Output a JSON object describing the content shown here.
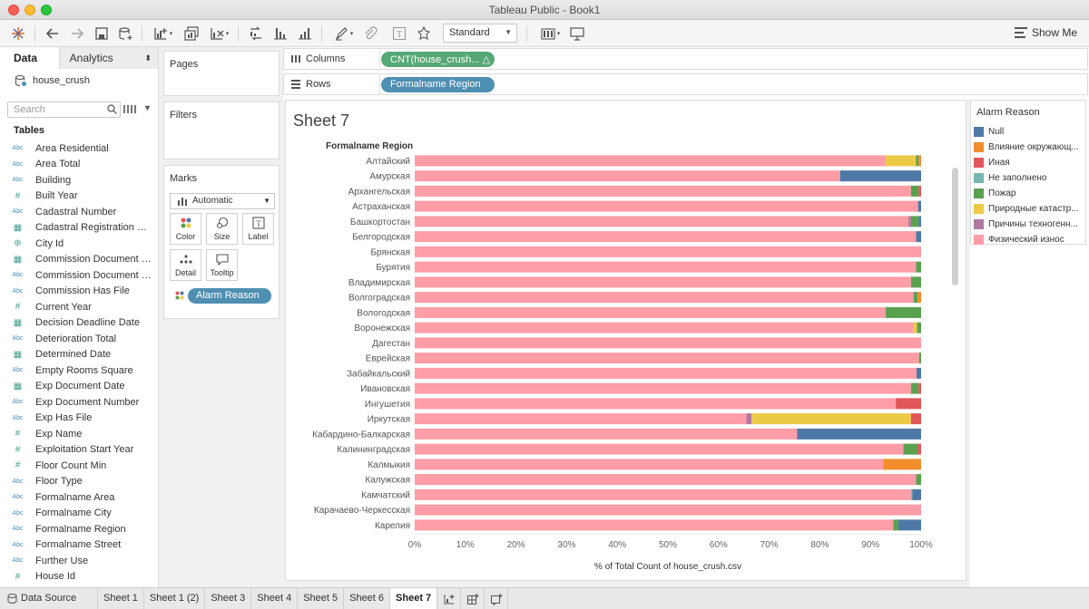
{
  "window": {
    "title": "Tableau Public - Book1"
  },
  "toolbar": {
    "fit_value": "Standard",
    "show_me_label": "Show Me",
    "icons": [
      "tableau-logo-icon",
      "undo-icon",
      "redo-icon",
      "save-icon",
      "new-datasource-icon",
      "new-worksheet-icon",
      "duplicate-icon",
      "clear-icon",
      "swap-icon",
      "sort-ascending-icon",
      "sort-descending-icon",
      "highlight-icon",
      "group-icon",
      "label-icon",
      "fix-axes-icon",
      "show-cards-icon",
      "presentation-icon"
    ]
  },
  "data_pane": {
    "tab_data": "Data",
    "tab_analytics": "Analytics",
    "datasource": "house_crush",
    "search_placeholder": "Search",
    "tables_heading": "Tables",
    "fields": [
      {
        "name": "Area Residential",
        "type": "Abc"
      },
      {
        "name": "Area Total",
        "type": "Abc"
      },
      {
        "name": "Building",
        "type": "Abc"
      },
      {
        "name": "Built Year",
        "type": "#"
      },
      {
        "name": "Cadastral Number",
        "type": "Abc"
      },
      {
        "name": "Cadastral Registration Date",
        "type": "date"
      },
      {
        "name": "City Id",
        "type": "geo"
      },
      {
        "name": "Commission Document D...",
        "type": "date"
      },
      {
        "name": "Commission Document N...",
        "type": "Abc"
      },
      {
        "name": "Commission Has File",
        "type": "Abc"
      },
      {
        "name": "Current Year",
        "type": "#"
      },
      {
        "name": "Decision Deadline Date",
        "type": "date"
      },
      {
        "name": "Deterioration Total",
        "type": "Abc"
      },
      {
        "name": "Determined Date",
        "type": "date"
      },
      {
        "name": "Empty Rooms Square",
        "type": "Abc"
      },
      {
        "name": "Exp Document Date",
        "type": "date"
      },
      {
        "name": "Exp Document Number",
        "type": "Abc"
      },
      {
        "name": "Exp Has File",
        "type": "Abc"
      },
      {
        "name": "Exp Name",
        "type": "#"
      },
      {
        "name": "Exploitation Start Year",
        "type": "#"
      },
      {
        "name": "Floor Count Min",
        "type": "#"
      },
      {
        "name": "Floor Type",
        "type": "Abc"
      },
      {
        "name": "Formalname Area",
        "type": "Abc"
      },
      {
        "name": "Formalname City",
        "type": "Abc"
      },
      {
        "name": "Formalname Region",
        "type": "Abc"
      },
      {
        "name": "Formalname Street",
        "type": "Abc"
      },
      {
        "name": "Further Use",
        "type": "Abc"
      },
      {
        "name": "House Id",
        "type": "#"
      }
    ]
  },
  "cards": {
    "pages": "Pages",
    "filters": "Filters",
    "marks": "Marks",
    "marks_type": "Automatic",
    "buttons": {
      "color": "Color",
      "size": "Size",
      "label": "Label",
      "detail": "Detail",
      "tooltip": "Tooltip"
    },
    "color_pill": "Alarm Reason"
  },
  "shelves": {
    "columns_label": "Columns",
    "columns_pill": "CNT(house_crush... △",
    "rows_label": "Rows",
    "rows_pill": "Formalname Region"
  },
  "sheet": {
    "title": "Sheet 7"
  },
  "chart_data": {
    "type": "bar",
    "orientation": "horizontal-stacked-100",
    "row_header": "Formalname Region",
    "xlabel": "% of Total Count of house_crush.csv",
    "xlim": [
      0,
      100
    ],
    "x_ticks": [
      "0%",
      "10%",
      "20%",
      "30%",
      "40%",
      "50%",
      "60%",
      "70%",
      "80%",
      "90%",
      "100%"
    ],
    "series_order": [
      "Физический износ",
      "Причины техногенн...",
      "Природные катастр...",
      "Пожар",
      "Не заполнено",
      "Иная",
      "Влияние окружающ...",
      "Null"
    ],
    "colors": {
      "Null": "#4e79a7",
      "Влияние окружающ...": "#f28e2b",
      "Иная": "#e15759",
      "Не заполнено": "#76b7b2",
      "Пожар": "#59a14f",
      "Природные катастр...": "#edc948",
      "Причины техногенн...": "#b07aa1",
      "Физический износ": "#ff9da7"
    },
    "rows": [
      {
        "category": "Алтайский",
        "values": {
          "Физический износ": 93,
          "Природные катастр...": 6,
          "Пожар": 0.5,
          "Влияние окружающ...": 0.5
        }
      },
      {
        "category": "Амурская",
        "values": {
          "Физический износ": 84,
          "Null": 16
        }
      },
      {
        "category": "Архангельская",
        "values": {
          "Физический износ": 98,
          "Пожар": 1.5,
          "Иная": 0.5
        }
      },
      {
        "category": "Астраханская",
        "values": {
          "Физический износ": 99.4,
          "Null": 0.6
        }
      },
      {
        "category": "Башкортостан",
        "values": {
          "Физический износ": 97.5,
          "Пожар": 1.5,
          "Причины техногенн...": 0.5,
          "Null": 0.5
        }
      },
      {
        "category": "Белгородская",
        "values": {
          "Физический износ": 99,
          "Null": 1
        }
      },
      {
        "category": "Брянская",
        "values": {
          "Физический износ": 100
        }
      },
      {
        "category": "Бурятия",
        "values": {
          "Физический износ": 99,
          "Пожар": 1
        }
      },
      {
        "category": "Владимирская",
        "values": {
          "Физический износ": 98,
          "Пожар": 2
        }
      },
      {
        "category": "Волгоградская",
        "values": {
          "Физический износ": 98.5,
          "Пожар": 0.8,
          "Влияние окружающ...": 0.7
        }
      },
      {
        "category": "Вологодская",
        "values": {
          "Физический износ": 93,
          "Пожар": 7
        }
      },
      {
        "category": "Воронежская",
        "values": {
          "Физический износ": 98.5,
          "Пожар": 0.8,
          "Природные катастр...": 0.7
        }
      },
      {
        "category": "Дагестан",
        "values": {
          "Физический износ": 100
        }
      },
      {
        "category": "Еврейская",
        "values": {
          "Физический износ": 99.6,
          "Пожар": 0.4
        }
      },
      {
        "category": "Забайкальский",
        "values": {
          "Физический износ": 99.1,
          "Null": 0.9
        }
      },
      {
        "category": "Ивановская",
        "values": {
          "Физический износ": 98,
          "Пожар": 1.5,
          "Иная": 0.5
        }
      },
      {
        "category": "Ингушетия",
        "values": {
          "Физический износ": 95,
          "Иная": 5
        }
      },
      {
        "category": "Иркутская",
        "values": {
          "Физический износ": 65.5,
          "Причины техногенн...": 1,
          "Природные катастр...": 31.5,
          "Иная": 2
        }
      },
      {
        "category": "Кабардино-Балкарская",
        "values": {
          "Физический износ": 75.5,
          "Null": 24.5
        }
      },
      {
        "category": "Калининградская",
        "values": {
          "Физический износ": 96.5,
          "Пожар": 2.8,
          "Иная": 0.7
        }
      },
      {
        "category": "Калмыкия",
        "values": {
          "Физический износ": 92.5,
          "Влияние окружающ...": 7.5
        }
      },
      {
        "category": "Калужская",
        "values": {
          "Физический износ": 99,
          "Пожар": 1
        }
      },
      {
        "category": "Камчатский",
        "values": {
          "Физический износ": 98,
          "Не заполнено": 0.3,
          "Null": 1.7
        }
      },
      {
        "category": "Карачаево-Черкесская",
        "values": {
          "Физический износ": 100
        }
      },
      {
        "category": "Карелия",
        "values": {
          "Физический износ": 94.5,
          "Пожар": 1,
          "Null": 4.5
        }
      }
    ]
  },
  "legend": {
    "title": "Alarm Reason",
    "items": [
      "Null",
      "Влияние окружающ...",
      "Иная",
      "Не заполнено",
      "Пожар",
      "Природные катастр...",
      "Причины техногенн...",
      "Физический износ"
    ]
  },
  "bottom_tabs": {
    "data_source": "Data Source",
    "sheets": [
      "Sheet 1",
      "Sheet 1 (2)",
      "Sheet 3",
      "Sheet 4",
      "Sheet 5",
      "Sheet 6",
      "Sheet 7"
    ],
    "active": "Sheet 7"
  }
}
